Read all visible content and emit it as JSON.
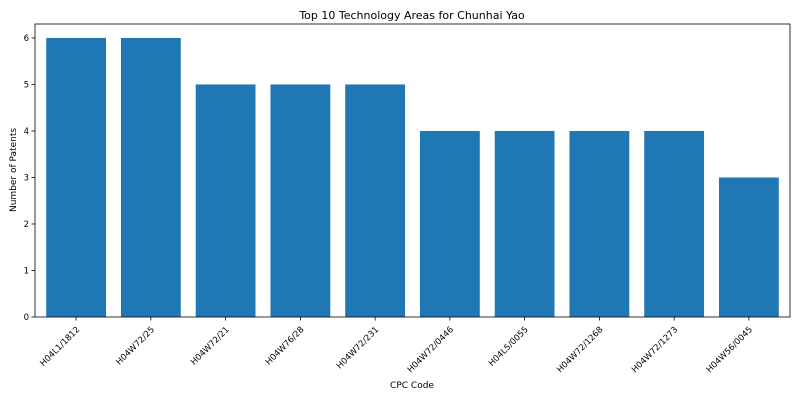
{
  "chart_data": {
    "type": "bar",
    "title": "Top 10 Technology Areas for Chunhai Yao",
    "xlabel": "CPC Code",
    "ylabel": "Number of Patents",
    "categories": [
      "H04L1/1812",
      "H04W72/25",
      "H04W72/21",
      "H04W76/28",
      "H04W72/231",
      "H04W72/0446",
      "H04L5/0055",
      "H04W72/1268",
      "H04W72/1273",
      "H04W56/0045"
    ],
    "values": [
      6,
      6,
      5,
      5,
      5,
      4,
      4,
      4,
      4,
      3
    ],
    "ylim": [
      0,
      6.3
    ],
    "yticks": [
      0,
      1,
      2,
      3,
      4,
      5,
      6
    ],
    "bar_color": "#1f77b4",
    "grid": false,
    "legend": "none"
  }
}
